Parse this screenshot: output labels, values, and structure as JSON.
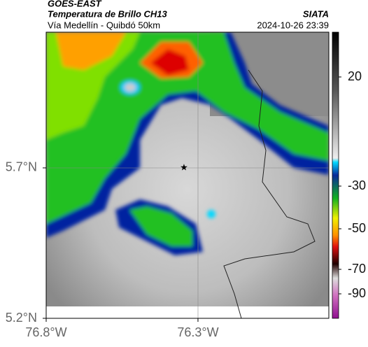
{
  "header": {
    "title": "GOES-EAST",
    "subtitle": "Temperatura de Brillo CH13",
    "source": "SIATA",
    "route": "Vía Medellín - Quibdó 50km",
    "timestamp": "2024-10-26 23:39"
  },
  "map": {
    "xlim": [
      -76.8,
      -75.869
    ],
    "ylim": [
      5.2,
      6.151
    ],
    "xticks": [
      {
        "value": -76.8,
        "label": "76.8°W"
      },
      {
        "value": -76.3,
        "label": "76.3°W"
      }
    ],
    "yticks": [
      {
        "value": 5.2,
        "label": "5.2°N"
      },
      {
        "value": 5.7,
        "label": "5.7°N"
      }
    ]
  },
  "colorbar": {
    "ticks": [
      20,
      -30,
      -50,
      -70,
      -90
    ]
  }
}
